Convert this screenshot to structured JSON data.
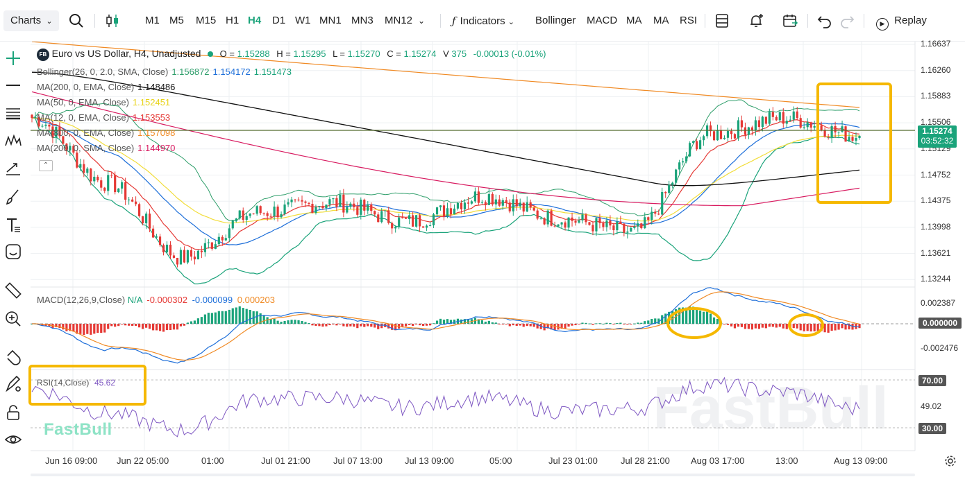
{
  "toolbar": {
    "charts_label": "Charts",
    "timeframes": [
      "M1",
      "M5",
      "M15",
      "H1",
      "H4",
      "D1",
      "W1",
      "MN1",
      "MN3",
      "MN12"
    ],
    "active_timeframe": "H4",
    "indicators_label": "Indicators",
    "quick_indicators": [
      "Bollinger",
      "MACD",
      "MA",
      "MA",
      "RSI"
    ],
    "replay_label": "Replay"
  },
  "symbol": {
    "badge": "FB",
    "title": "Euro vs US Dollar, H4, Unadjusted",
    "o_label": "O =",
    "o": "1.15288",
    "h_label": "H =",
    "h": "1.15295",
    "l_label": "L =",
    "l": "1.15270",
    "c_label": "C =",
    "c": "1.15274",
    "v_label": "V",
    "v": "375",
    "change": "-0.00013 (-0.01%)"
  },
  "indicators": [
    {
      "label": "Bollinger(26, 0, 2.0, SMA, Close)",
      "values": [
        "1.156872",
        "1.154172",
        "1.151473"
      ],
      "colors": [
        "#2e9e6a",
        "#1e6fd9",
        "#1aa37a"
      ]
    },
    {
      "label": "MA(200, 0, EMA, Close)",
      "values": [
        "1.148486"
      ],
      "colors": [
        "#111111"
      ]
    },
    {
      "label": "MA(50, 0, EMA, Close)",
      "values": [
        "1.152451"
      ],
      "colors": [
        "#e8d31a"
      ]
    },
    {
      "label": "MA(12, 0, EMA, Close)",
      "values": [
        "1.153553"
      ],
      "colors": [
        "#e53935"
      ]
    },
    {
      "label": "MA(800, 0, EMA, Close)",
      "values": [
        "1.157098"
      ],
      "colors": [
        "#f08a24"
      ]
    },
    {
      "label": "MA(200, 0, SMA, Close)",
      "values": [
        "1.144970"
      ],
      "colors": [
        "#d81b60"
      ]
    }
  ],
  "price_axis": [
    "1.16637",
    "1.16260",
    "1.15883",
    "1.15506",
    "1.15129",
    "1.14752",
    "1.14375",
    "1.13998",
    "1.13621",
    "1.13244"
  ],
  "current_price": {
    "price": "1.15274",
    "countdown": "03:52:32"
  },
  "macd": {
    "label": "MACD(12,26,9,Close)",
    "values": [
      "N/A",
      "-0.000302",
      "-0.000099",
      "0.000203"
    ],
    "colors": [
      "#1aa37a",
      "#e53935",
      "#1e6fd9",
      "#f08a24"
    ],
    "axis": [
      "0.002387",
      "0.000000",
      "-0.002476"
    ]
  },
  "rsi": {
    "label": "RSI(14,Close)",
    "value": "45.62",
    "axis": [
      "70.00",
      "49.02",
      "30.00"
    ]
  },
  "time_axis": [
    "Jun 16 09:00",
    "Jun 22 05:00",
    "01:00",
    "Jul 01 21:00",
    "Jul 07 13:00",
    "Jul 13 09:00",
    "05:00",
    "Jul 23 01:00",
    "Jul 28 21:00",
    "Aug 03 17:00",
    "13:00",
    "Aug 13 09:00"
  ],
  "watermark": "FastBull",
  "colors": {
    "up": "#1aa37a",
    "down": "#e53935",
    "highlight": "#f5b800",
    "accent": "#1aa37a"
  },
  "chart_data": {
    "type": "candlestick",
    "title": "Euro vs US Dollar, H4, Unadjusted",
    "x": [
      "Jun 16 09:00",
      "Jun 22 05:00",
      "01:00",
      "Jul 01 21:00",
      "Jul 07 13:00",
      "Jul 13 09:00",
      "05:00",
      "Jul 23 01:00",
      "Jul 28 21:00",
      "Aug 03 17:00",
      "13:00",
      "Aug 13 09:00"
    ],
    "close": [
      1.1555,
      1.1455,
      1.134,
      1.141,
      1.1425,
      1.1395,
      1.1435,
      1.14,
      1.138,
      1.153,
      1.1555,
      1.1527
    ],
    "ylim": [
      1.131,
      1.167
    ],
    "rsi": [
      63,
      42,
      28,
      54,
      55,
      47,
      55,
      44,
      46,
      66,
      60,
      45.62
    ]
  }
}
